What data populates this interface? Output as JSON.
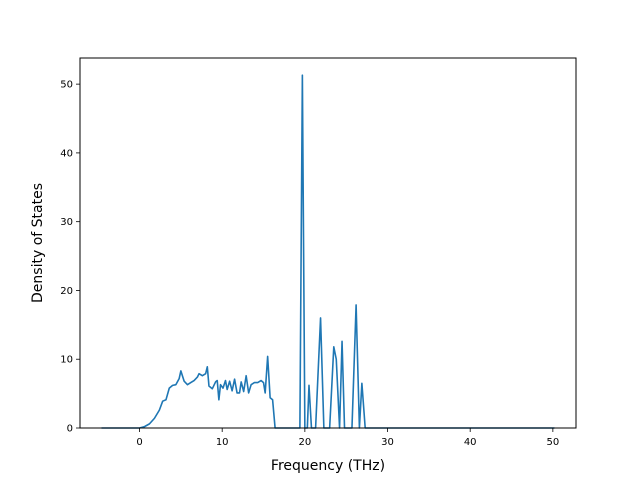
{
  "chart_data": {
    "type": "line",
    "title": "",
    "xlabel": "Frequency (THz)",
    "ylabel": "Density of States",
    "xlim": [
      -7.2,
      52.8
    ],
    "ylim": [
      0,
      53.8
    ],
    "x_ticks": [
      0,
      10,
      20,
      30,
      40,
      50
    ],
    "y_ticks": [
      0,
      10,
      20,
      30,
      40,
      50
    ],
    "grid": false,
    "legend": "none",
    "series": [
      {
        "color": "#1f77b4",
        "points": [
          [
            -4.6,
            0
          ],
          [
            0.0,
            0
          ],
          [
            0.6,
            0.2
          ],
          [
            1.2,
            0.6
          ],
          [
            1.8,
            1.4
          ],
          [
            2.4,
            2.6
          ],
          [
            2.8,
            3.9
          ],
          [
            3.2,
            4.1
          ],
          [
            3.6,
            5.8
          ],
          [
            4.0,
            6.2
          ],
          [
            4.4,
            6.3
          ],
          [
            4.8,
            7.2
          ],
          [
            5.0,
            8.3
          ],
          [
            5.4,
            6.8
          ],
          [
            5.8,
            6.3
          ],
          [
            6.2,
            6.6
          ],
          [
            6.6,
            6.9
          ],
          [
            7.0,
            7.4
          ],
          [
            7.2,
            7.9
          ],
          [
            7.6,
            7.6
          ],
          [
            8.0,
            7.9
          ],
          [
            8.2,
            8.9
          ],
          [
            8.4,
            6.1
          ],
          [
            8.8,
            5.7
          ],
          [
            9.2,
            6.7
          ],
          [
            9.4,
            6.9
          ],
          [
            9.6,
            4.1
          ],
          [
            9.8,
            6.3
          ],
          [
            10.1,
            5.8
          ],
          [
            10.4,
            6.9
          ],
          [
            10.6,
            5.6
          ],
          [
            10.9,
            6.8
          ],
          [
            11.2,
            5.4
          ],
          [
            11.5,
            7.1
          ],
          [
            11.8,
            5.1
          ],
          [
            12.1,
            5.1
          ],
          [
            12.3,
            6.7
          ],
          [
            12.6,
            5.3
          ],
          [
            12.9,
            7.6
          ],
          [
            13.2,
            5.1
          ],
          [
            13.5,
            6.3
          ],
          [
            13.9,
            6.6
          ],
          [
            14.3,
            6.6
          ],
          [
            14.7,
            6.9
          ],
          [
            15.0,
            6.6
          ],
          [
            15.2,
            5.1
          ],
          [
            15.5,
            10.4
          ],
          [
            15.8,
            4.4
          ],
          [
            16.1,
            4.1
          ],
          [
            16.4,
            0
          ],
          [
            19.4,
            0
          ],
          [
            19.7,
            51.3
          ],
          [
            20.0,
            0
          ],
          [
            20.3,
            0
          ],
          [
            20.5,
            6.2
          ],
          [
            20.8,
            0
          ],
          [
            21.3,
            0
          ],
          [
            21.9,
            16.0
          ],
          [
            22.3,
            0
          ],
          [
            23.0,
            0
          ],
          [
            23.5,
            11.8
          ],
          [
            23.8,
            10.0
          ],
          [
            24.2,
            0
          ],
          [
            24.5,
            12.6
          ],
          [
            24.8,
            0
          ],
          [
            25.7,
            0
          ],
          [
            26.2,
            17.9
          ],
          [
            26.6,
            0
          ],
          [
            26.9,
            6.5
          ],
          [
            27.3,
            0
          ],
          [
            50.2,
            0
          ]
        ]
      }
    ]
  }
}
